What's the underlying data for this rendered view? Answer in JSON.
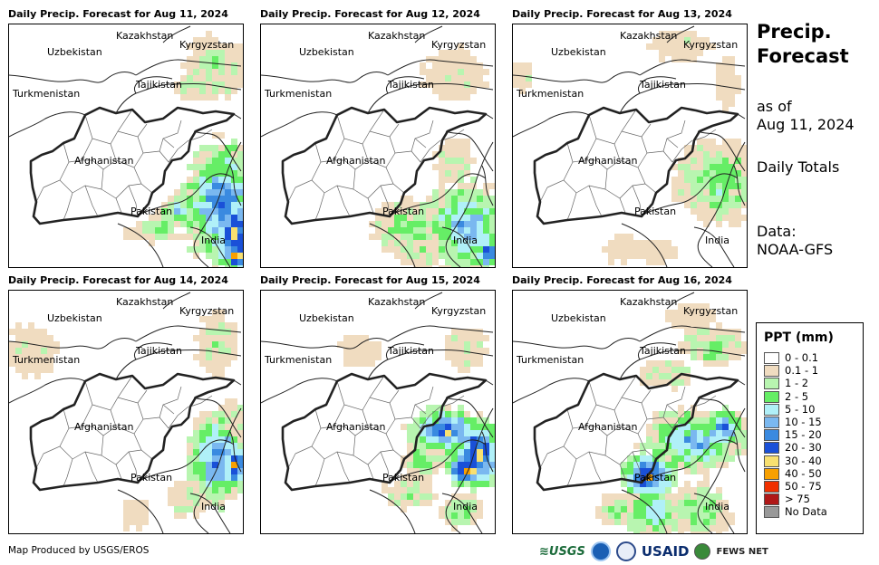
{
  "panels": [
    {
      "title": "Daily Precip. Forecast for Aug 11, 2024",
      "scenario": 0
    },
    {
      "title": "Daily Precip. Forecast for Aug 12, 2024",
      "scenario": 1
    },
    {
      "title": "Daily Precip. Forecast for Aug 13, 2024",
      "scenario": 2
    },
    {
      "title": "Daily Precip. Forecast for Aug 14, 2024",
      "scenario": 3
    },
    {
      "title": "Daily Precip. Forecast for Aug 15, 2024",
      "scenario": 4
    },
    {
      "title": "Daily Precip. Forecast for Aug 16, 2024",
      "scenario": 5
    }
  ],
  "country_labels": {
    "kazakhstan": "Kazakhstan",
    "kyrgyzstan": "Kyrgyzstan",
    "uzbekistan": "Uzbekistan",
    "tajikistan": "Tajikistan",
    "turkmenistan": "Turkmenistan",
    "afghanistan": "Afghanistan",
    "pakistan": "Pakistan",
    "india": "India"
  },
  "sidebar": {
    "title_line1": "Precip.",
    "title_line2": "Forecast",
    "as_of_line1": "as of",
    "as_of_line2": "Aug 11, 2024",
    "totals": "Daily Totals",
    "data_line1": "Data:",
    "data_line2": "NOAA-GFS"
  },
  "legend": {
    "title": "PPT (mm)",
    "items": [
      {
        "label": "0 - 0.1",
        "color": "#ffffff"
      },
      {
        "label": "0.1 - 1",
        "color": "#f0dcc0"
      },
      {
        "label": "1 - 2",
        "color": "#b8f5b0"
      },
      {
        "label": "2 - 5",
        "color": "#66ee66"
      },
      {
        "label": "5 - 10",
        "color": "#b0f0f8"
      },
      {
        "label": "10 - 15",
        "color": "#7ab8f0"
      },
      {
        "label": "15 - 20",
        "color": "#3a8ae0"
      },
      {
        "label": "20 - 30",
        "color": "#1a50d8"
      },
      {
        "label": "30 - 40",
        "color": "#f8e070"
      },
      {
        "label": "40 - 50",
        "color": "#f8a000"
      },
      {
        "label": "50 - 75",
        "color": "#f03000"
      },
      {
        "label": "> 75",
        "color": "#b01818"
      },
      {
        "label": "No Data",
        "color": "#999999"
      }
    ]
  },
  "footer": {
    "credit": "Map Produced by USGS/EROS",
    "logo_usgs": "≋USGS",
    "logo_usaid": "USAID",
    "logo_fews": "FEWS NET"
  }
}
